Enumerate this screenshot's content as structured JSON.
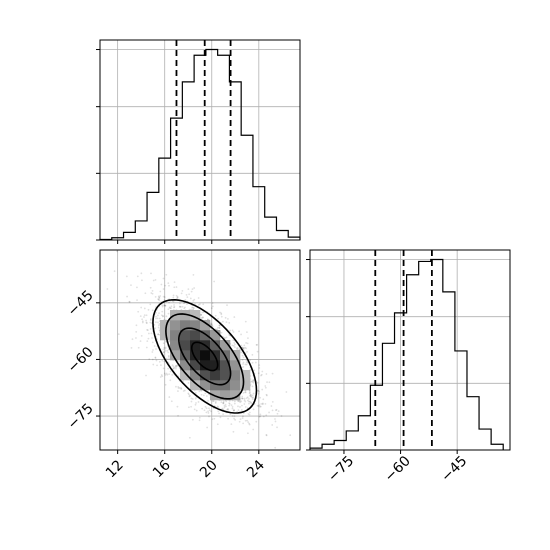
{
  "chart_data": {
    "type": "corner",
    "parameters": [
      {
        "xlim": [
          10.5,
          27.5
        ],
        "ticks": [
          12,
          16,
          20,
          24
        ]
      },
      {
        "xlim": [
          -84,
          -31
        ],
        "ticks": [
          -75,
          -60,
          -45
        ],
        "ylim": [
          -84,
          -31
        ]
      }
    ],
    "marginals": [
      {
        "bin_edges": [
          10.5,
          11.5,
          12.5,
          13.5,
          14.5,
          15.5,
          16.5,
          17.5,
          18.5,
          19.5,
          20.5,
          21.5,
          22.5,
          23.5,
          24.5,
          25.5,
          26.5,
          27.5
        ],
        "counts": [
          0.003,
          0.012,
          0.04,
          0.1,
          0.25,
          0.43,
          0.64,
          0.83,
          0.97,
          1.0,
          0.97,
          0.83,
          0.55,
          0.28,
          0.12,
          0.05,
          0.015
        ],
        "quantiles": [
          17.0,
          19.4,
          21.6
        ]
      },
      {
        "bin_edges": [
          -84,
          -80.8,
          -77.6,
          -74.4,
          -71.2,
          -68,
          -64.8,
          -61.6,
          -58.4,
          -55.2,
          -52,
          -48.8,
          -45.6,
          -42.4,
          -39.2,
          -36,
          -32.8
        ],
        "counts": [
          0.01,
          0.03,
          0.05,
          0.1,
          0.18,
          0.34,
          0.56,
          0.72,
          0.92,
          0.99,
          1.0,
          0.83,
          0.52,
          0.28,
          0.11,
          0.03
        ],
        "quantiles": [
          -66.7,
          -59.2,
          -51.7
        ]
      }
    ],
    "joint": {
      "x_param": 0,
      "y_param": 1,
      "center": [
        19.4,
        -59.2
      ],
      "std": [
        2.2,
        7.5
      ],
      "correlation": -0.6,
      "contour_levels_sigma": [
        0.5,
        1.0,
        1.5,
        2.0
      ]
    },
    "grid": true
  }
}
